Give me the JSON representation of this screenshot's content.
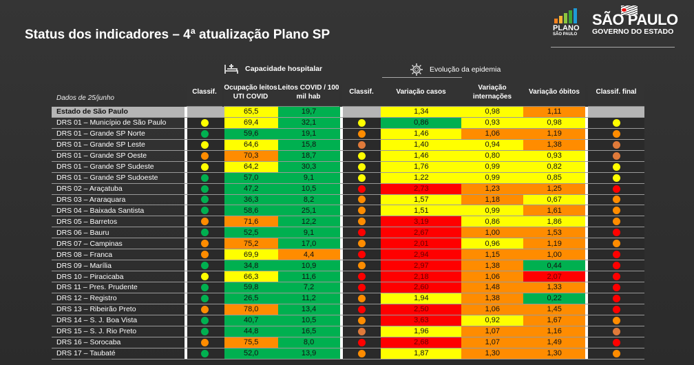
{
  "title": "Status dos indicadores – 4ª atualização Plano SP",
  "logos": {
    "plano": [
      "PLANO",
      "SÃO PAULO"
    ],
    "sp": [
      "SÃO PAULO",
      "GOVERNO DO ESTADO"
    ]
  },
  "groups": {
    "hospital": "Capacidade hospitalar",
    "epidemic": "Evolução da epidemia"
  },
  "date_label": "Dados de 25/junho",
  "headers": {
    "classif": "Classif.",
    "ocupacao": "Ocupação leitos UTI COVID",
    "leitos": "Leitos COVID / 100 mil hab",
    "classif2": "Classif.",
    "casos": "Variação casos",
    "internacoes": "Variação internações",
    "obitos": "Variação óbitos",
    "final": "Classif. final"
  },
  "colors": {
    "yellow": "#ffff00",
    "green": "#00b050",
    "orange": "#ff8c00",
    "red": "#ff0000",
    "light_orange": "#e07a3a"
  },
  "rows": [
    {
      "name": "Estado de São Paulo",
      "c1": "",
      "ocup": [
        "65,5",
        "y"
      ],
      "leitos": [
        "19,7",
        "g"
      ],
      "c2": "",
      "casos": [
        "1,34",
        "y"
      ],
      "intern": [
        "0,98",
        "y"
      ],
      "obitos": [
        "1,11",
        "o"
      ],
      "final": ""
    },
    {
      "name": "DRS 01 – Município de São Paulo",
      "c1": "y",
      "ocup": [
        "69,4",
        "y"
      ],
      "leitos": [
        "32,1",
        "g"
      ],
      "c2": "y",
      "casos": [
        "0,86",
        "g"
      ],
      "intern": [
        "0,93",
        "y"
      ],
      "obitos": [
        "0,98",
        "y"
      ],
      "final": "y"
    },
    {
      "name": "DRS 01 – Grande SP Norte",
      "c1": "g",
      "ocup": [
        "59,6",
        "g"
      ],
      "leitos": [
        "19,1",
        "g"
      ],
      "c2": "o",
      "casos": [
        "1,46",
        "y"
      ],
      "intern": [
        "1,06",
        "o"
      ],
      "obitos": [
        "1,19",
        "o"
      ],
      "final": "o"
    },
    {
      "name": "DRS 01 – Grande SP Leste",
      "c1": "y",
      "ocup": [
        "64,6",
        "y"
      ],
      "leitos": [
        "15,8",
        "g"
      ],
      "c2": "lo",
      "casos": [
        "1,40",
        "y"
      ],
      "intern": [
        "0,94",
        "y"
      ],
      "obitos": [
        "1,38",
        "o"
      ],
      "final": "lo"
    },
    {
      "name": "DRS 01 – Grande SP Oeste",
      "c1": "o",
      "ocup": [
        "70,3",
        "o"
      ],
      "leitos": [
        "18,7",
        "g"
      ],
      "c2": "y",
      "casos": [
        "1,46",
        "y"
      ],
      "intern": [
        "0,80",
        "y"
      ],
      "obitos": [
        "0,93",
        "y"
      ],
      "final": "lo"
    },
    {
      "name": "DRS 01 – Grande SP Sudeste",
      "c1": "y",
      "ocup": [
        "64,2",
        "y"
      ],
      "leitos": [
        "30,3",
        "g"
      ],
      "c2": "y",
      "casos": [
        "1,76",
        "y"
      ],
      "intern": [
        "0,99",
        "y"
      ],
      "obitos": [
        "0,82",
        "y"
      ],
      "final": "y"
    },
    {
      "name": "DRS 01 – Grande SP Sudoeste",
      "c1": "g",
      "ocup": [
        "57,0",
        "g"
      ],
      "leitos": [
        "9,1",
        "g"
      ],
      "c2": "y",
      "casos": [
        "1,22",
        "y"
      ],
      "intern": [
        "0,99",
        "y"
      ],
      "obitos": [
        "0,85",
        "y"
      ],
      "final": "y"
    },
    {
      "name": "DRS 02 – Araçatuba",
      "c1": "g",
      "ocup": [
        "47,2",
        "g"
      ],
      "leitos": [
        "10,5",
        "g"
      ],
      "c2": "r",
      "casos": [
        "2,73",
        "r"
      ],
      "intern": [
        "1,23",
        "o"
      ],
      "obitos": [
        "1,25",
        "o"
      ],
      "final": "r"
    },
    {
      "name": "DRS 03 – Araraquara",
      "c1": "g",
      "ocup": [
        "36,3",
        "g"
      ],
      "leitos": [
        "8,2",
        "g"
      ],
      "c2": "o",
      "casos": [
        "1,57",
        "y"
      ],
      "intern": [
        "1,18",
        "o"
      ],
      "obitos": [
        "0,67",
        "y"
      ],
      "final": "o"
    },
    {
      "name": "DRS 04 – Baixada Santista",
      "c1": "g",
      "ocup": [
        "58,6",
        "g"
      ],
      "leitos": [
        "25,1",
        "g"
      ],
      "c2": "o",
      "casos": [
        "1,51",
        "y"
      ],
      "intern": [
        "0,99",
        "y"
      ],
      "obitos": [
        "1,61",
        "o"
      ],
      "final": "o"
    },
    {
      "name": "DRS 05 – Barretos",
      "c1": "o",
      "ocup": [
        "71,6",
        "o"
      ],
      "leitos": [
        "12,2",
        "g"
      ],
      "c2": "o",
      "casos": [
        "3,19",
        "r"
      ],
      "intern": [
        "0,86",
        "y"
      ],
      "obitos": [
        "1,86",
        "y"
      ],
      "final": "o"
    },
    {
      "name": "DRS 06 – Bauru",
      "c1": "g",
      "ocup": [
        "52,5",
        "g"
      ],
      "leitos": [
        "9,1",
        "g"
      ],
      "c2": "r",
      "casos": [
        "2,67",
        "r"
      ],
      "intern": [
        "1,00",
        "o"
      ],
      "obitos": [
        "1,53",
        "o"
      ],
      "final": "r"
    },
    {
      "name": "DRS 07 – Campinas",
      "c1": "o",
      "ocup": [
        "75,2",
        "o"
      ],
      "leitos": [
        "17,0",
        "g"
      ],
      "c2": "o",
      "casos": [
        "2,01",
        "r"
      ],
      "intern": [
        "0,96",
        "y"
      ],
      "obitos": [
        "1,19",
        "o"
      ],
      "final": "o"
    },
    {
      "name": "DRS 08 – Franca",
      "c1": "o",
      "ocup": [
        "69,9",
        "y"
      ],
      "leitos": [
        "4,4",
        "o"
      ],
      "c2": "r",
      "casos": [
        "2,94",
        "r"
      ],
      "intern": [
        "1,15",
        "o"
      ],
      "obitos": [
        "1,00",
        "o"
      ],
      "final": "r"
    },
    {
      "name": "DRS 09 – Marília",
      "c1": "g",
      "ocup": [
        "34,8",
        "g"
      ],
      "leitos": [
        "10,9",
        "g"
      ],
      "c2": "o",
      "casos": [
        "2,97",
        "r"
      ],
      "intern": [
        "1,38",
        "o"
      ],
      "obitos": [
        "0,44",
        "g"
      ],
      "final": "r"
    },
    {
      "name": "DRS 10 – Piracicaba",
      "c1": "y",
      "ocup": [
        "66,3",
        "y"
      ],
      "leitos": [
        "11,6",
        "g"
      ],
      "c2": "r",
      "casos": [
        "2,18",
        "r"
      ],
      "intern": [
        "1,06",
        "o"
      ],
      "obitos": [
        "2,07",
        "r"
      ],
      "final": "r"
    },
    {
      "name": "DRS 11 – Pres. Prudente",
      "c1": "g",
      "ocup": [
        "59,8",
        "g"
      ],
      "leitos": [
        "7,2",
        "g"
      ],
      "c2": "r",
      "casos": [
        "2,60",
        "r"
      ],
      "intern": [
        "1,48",
        "o"
      ],
      "obitos": [
        "1,33",
        "o"
      ],
      "final": "r"
    },
    {
      "name": "DRS 12 – Registro",
      "c1": "g",
      "ocup": [
        "26,5",
        "g"
      ],
      "leitos": [
        "11,2",
        "g"
      ],
      "c2": "o",
      "casos": [
        "1,94",
        "y"
      ],
      "intern": [
        "1,38",
        "o"
      ],
      "obitos": [
        "0,22",
        "g"
      ],
      "final": "r"
    },
    {
      "name": "DRS 13 – Ribeirão Preto",
      "c1": "o",
      "ocup": [
        "78,0",
        "o"
      ],
      "leitos": [
        "13,4",
        "g"
      ],
      "c2": "r",
      "casos": [
        "2,50",
        "r"
      ],
      "intern": [
        "1,06",
        "o"
      ],
      "obitos": [
        "1,45",
        "o"
      ],
      "final": "r"
    },
    {
      "name": "DRS 14 – S. J. Boa Vista",
      "c1": "g",
      "ocup": [
        "40,7",
        "g"
      ],
      "leitos": [
        "10,5",
        "g"
      ],
      "c2": "o",
      "casos": [
        "3,63",
        "r"
      ],
      "intern": [
        "0,92",
        "y"
      ],
      "obitos": [
        "1,67",
        "o"
      ],
      "final": "o"
    },
    {
      "name": "DRS 15 – S. J. Rio Preto",
      "c1": "g",
      "ocup": [
        "44,8",
        "g"
      ],
      "leitos": [
        "16,5",
        "g"
      ],
      "c2": "lo",
      "casos": [
        "1,96",
        "y"
      ],
      "intern": [
        "1,07",
        "o"
      ],
      "obitos": [
        "1,16",
        "o"
      ],
      "final": "lo"
    },
    {
      "name": "DRS 16 – Sorocaba",
      "c1": "o",
      "ocup": [
        "75,5",
        "o"
      ],
      "leitos": [
        "8,0",
        "g"
      ],
      "c2": "r",
      "casos": [
        "2,68",
        "r"
      ],
      "intern": [
        "1,07",
        "o"
      ],
      "obitos": [
        "1,49",
        "o"
      ],
      "final": "r"
    },
    {
      "name": "DRS 17 – Taubaté",
      "c1": "g",
      "ocup": [
        "52,0",
        "g"
      ],
      "leitos": [
        "13,9",
        "g"
      ],
      "c2": "o",
      "casos": [
        "1,87",
        "y"
      ],
      "intern": [
        "1,30",
        "o"
      ],
      "obitos": [
        "1,30",
        "o"
      ],
      "final": "o"
    }
  ]
}
